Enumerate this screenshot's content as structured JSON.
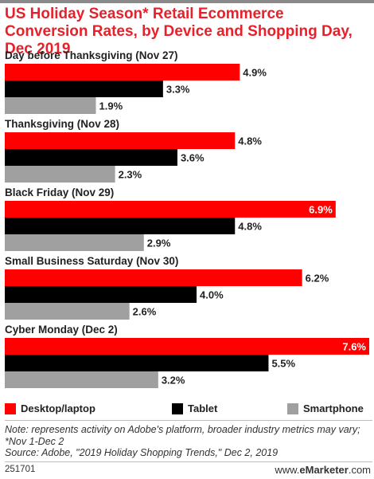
{
  "title": "US Holiday Season* Retail Ecommerce Conversion Rates, by Device and Shopping Day, Dec 2019",
  "colors": {
    "desktop": "#ff0000",
    "tablet": "#000000",
    "smartphone": "#a0a0a0",
    "title": "#e8202a"
  },
  "chart_data": {
    "type": "bar",
    "orientation": "horizontal",
    "categories": [
      "Day before Thanksgiving (Nov 27)",
      "Thanksgiving (Nov 28)",
      "Black Friday (Nov 29)",
      "Small Business Saturday (Nov 30)",
      "Cyber Monday (Dec 2)"
    ],
    "series": [
      {
        "name": "Desktop/laptop",
        "values": [
          4.9,
          4.8,
          6.9,
          6.2,
          7.6
        ],
        "labels": [
          "4.9%",
          "4.8%",
          "6.9%",
          "6.2%",
          "7.6%"
        ]
      },
      {
        "name": "Tablet",
        "values": [
          3.3,
          3.6,
          4.8,
          4.0,
          5.5
        ],
        "labels": [
          "3.3%",
          "3.6%",
          "4.8%",
          "4.0%",
          "5.5%"
        ]
      },
      {
        "name": "Smartphone",
        "values": [
          1.9,
          2.3,
          2.9,
          2.6,
          3.2
        ],
        "labels": [
          "1.9%",
          "2.3%",
          "2.9%",
          "2.6%",
          "3.2%"
        ]
      }
    ],
    "xlim": [
      0,
      7.6
    ],
    "grid": false,
    "legend": "bottom"
  },
  "footnote": "Note: represents activity on Adobe's platform, broader industry metrics may vary; *Nov 1-Dec 2",
  "source": "Source: Adobe, \"2019 Holiday Shopping Trends,\" Dec 2, 2019",
  "footer": {
    "id": "251701",
    "brand_prefix": "www.",
    "brand_name": "eMarketer",
    "brand_suffix": ".com"
  }
}
